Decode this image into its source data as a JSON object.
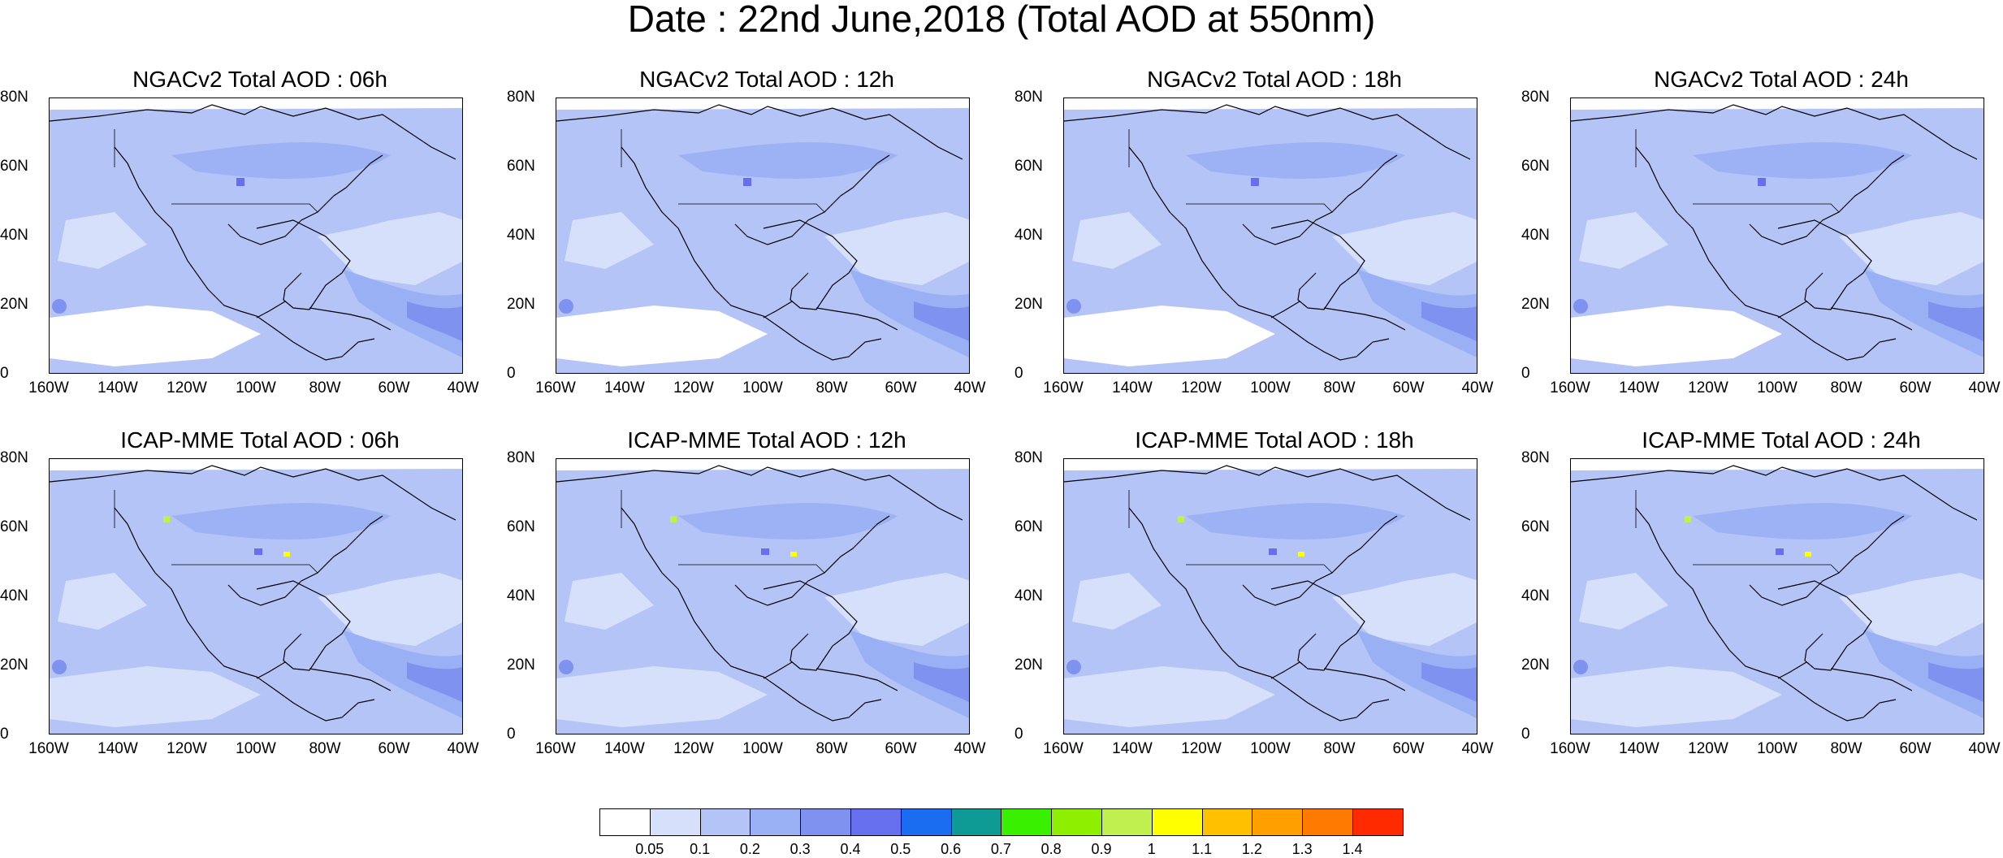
{
  "title": "Date : 22nd June,2018 (Total AOD at 550nm)",
  "panels": [
    {
      "title": "NGACv2 Total AOD : 06h",
      "model": "NGACv2",
      "hour": "06h"
    },
    {
      "title": "NGACv2 Total AOD : 12h",
      "model": "NGACv2",
      "hour": "12h"
    },
    {
      "title": "NGACv2 Total AOD : 18h",
      "model": "NGACv2",
      "hour": "18h"
    },
    {
      "title": "NGACv2 Total AOD : 24h",
      "model": "NGACv2",
      "hour": "24h"
    },
    {
      "title": "ICAP-MME Total AOD : 06h",
      "model": "ICAP-MME",
      "hour": "06h"
    },
    {
      "title": "ICAP-MME Total AOD : 12h",
      "model": "ICAP-MME",
      "hour": "12h"
    },
    {
      "title": "ICAP-MME Total AOD : 18h",
      "model": "ICAP-MME",
      "hour": "18h"
    },
    {
      "title": "ICAP-MME Total AOD : 24h",
      "model": "ICAP-MME",
      "hour": "24h"
    }
  ],
  "axes": {
    "lat_labels": [
      "80N",
      "60N",
      "40N",
      "20N",
      "0"
    ],
    "lon_labels": [
      "160W",
      "140W",
      "120W",
      "100W",
      "80W",
      "60W",
      "40W"
    ]
  },
  "colorbar": {
    "labels": [
      "0.05",
      "0.1",
      "0.2",
      "0.3",
      "0.4",
      "0.5",
      "0.6",
      "0.7",
      "0.8",
      "0.9",
      "1",
      "1.1",
      "1.2",
      "1.3",
      "1.4"
    ],
    "colors": [
      "#ffffff",
      "#d7e0fb",
      "#b4c4f6",
      "#9ab0f4",
      "#8092f0",
      "#6670ee",
      "#1a6cf0",
      "#0e9a95",
      "#38f000",
      "#8ef000",
      "#c0f050",
      "#ffff00",
      "#ffc000",
      "#ffa000",
      "#ff7a00",
      "#ff2a00"
    ]
  }
}
